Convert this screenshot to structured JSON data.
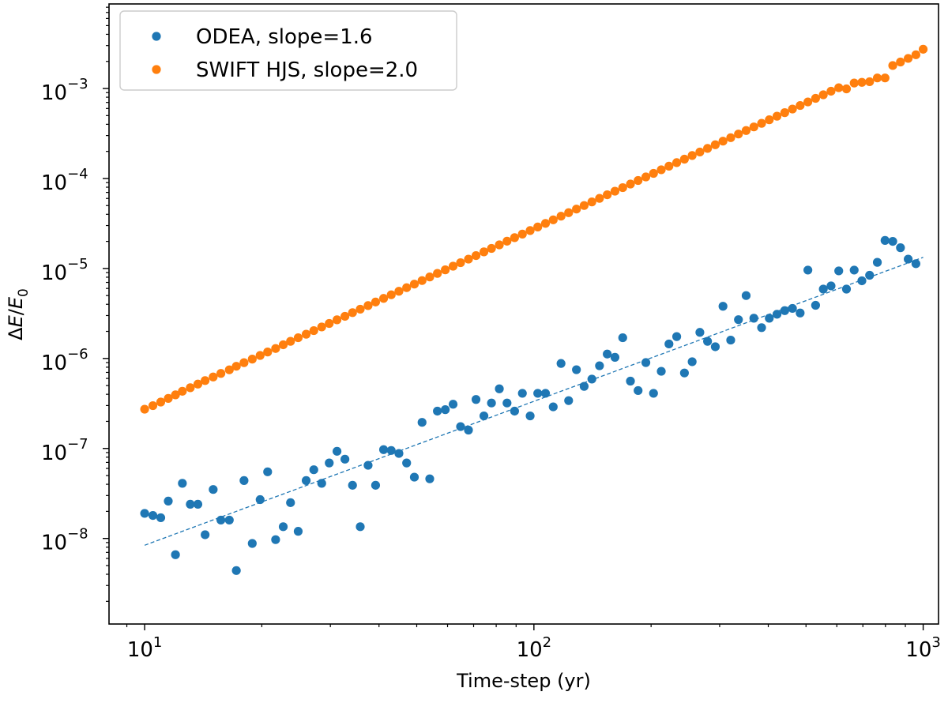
{
  "chart_data": {
    "type": "scatter",
    "xscale": "log",
    "yscale": "log",
    "xlim": [
      8.1,
      1095
    ],
    "ylim": [
      1.12e-09,
      0.0087
    ],
    "xlabel": "Time-step (yr)",
    "ylabel": "ΔE/E0",
    "grid": false,
    "legend_position": "top-left",
    "x_ticks": [
      {
        "value": 10,
        "base": "10",
        "exp": "1"
      },
      {
        "value": 100,
        "base": "10",
        "exp": "2"
      },
      {
        "value": 1000,
        "base": "10",
        "exp": "3"
      }
    ],
    "y_ticks": [
      {
        "value": 1e-08,
        "base": "10",
        "exp": "−8"
      },
      {
        "value": 1e-07,
        "base": "10",
        "exp": "−7"
      },
      {
        "value": 1e-06,
        "base": "10",
        "exp": "−6"
      },
      {
        "value": 1e-05,
        "base": "10",
        "exp": "−5"
      },
      {
        "value": 0.0001,
        "base": "10",
        "exp": "−4"
      },
      {
        "value": 0.001,
        "base": "10",
        "exp": "−3"
      }
    ],
    "series": [
      {
        "name": "ODEA, slope=1.6",
        "color": "#1f77b4",
        "points": [
          [
            10.0,
            1.9e-08
          ],
          [
            10.5,
            1.8e-08
          ],
          [
            11.0,
            1.7e-08
          ],
          [
            11.5,
            2.6e-08
          ],
          [
            12.0,
            6.6e-09
          ],
          [
            12.5,
            4.1e-08
          ],
          [
            13.1,
            2.4e-08
          ],
          [
            13.7,
            2.4e-08
          ],
          [
            14.3,
            1.1e-08
          ],
          [
            15.0,
            3.5e-08
          ],
          [
            15.7,
            1.6e-08
          ],
          [
            16.5,
            1.6e-08
          ],
          [
            17.2,
            4.4e-09
          ],
          [
            18.0,
            4.4e-08
          ],
          [
            18.9,
            8.8e-09
          ],
          [
            19.8,
            2.7e-08
          ],
          [
            20.7,
            5.5e-08
          ],
          [
            21.7,
            9.7e-09
          ],
          [
            22.7,
            1.35e-08
          ],
          [
            23.7,
            2.5e-08
          ],
          [
            24.8,
            1.2e-08
          ],
          [
            26.0,
            4.4e-08
          ],
          [
            27.2,
            5.8e-08
          ],
          [
            28.5,
            4.1e-08
          ],
          [
            29.8,
            6.9e-08
          ],
          [
            31.2,
            9.3e-08
          ],
          [
            32.7,
            7.6e-08
          ],
          [
            34.2,
            3.9e-08
          ],
          [
            35.8,
            1.35e-08
          ],
          [
            37.5,
            6.5e-08
          ],
          [
            39.2,
            3.9e-08
          ],
          [
            41.1,
            9.7e-08
          ],
          [
            43.0,
            9.5e-08
          ],
          [
            45.0,
            8.8e-08
          ],
          [
            47.1,
            6.9e-08
          ],
          [
            49.3,
            4.8e-08
          ],
          [
            51.6,
            1.95e-07
          ],
          [
            54.0,
            4.6e-08
          ],
          [
            56.5,
            2.6e-07
          ],
          [
            59.2,
            2.7e-07
          ],
          [
            62.0,
            3.1e-07
          ],
          [
            64.8,
            1.75e-07
          ],
          [
            67.9,
            1.6e-07
          ],
          [
            71.0,
            3.5e-07
          ],
          [
            74.4,
            2.3e-07
          ],
          [
            77.8,
            3.2e-07
          ],
          [
            81.5,
            4.6e-07
          ],
          [
            85.3,
            3.2e-07
          ],
          [
            89.2,
            2.6e-07
          ],
          [
            93.4,
            4.1e-07
          ],
          [
            97.8,
            2.3e-07
          ],
          [
            102.3,
            4.1e-07
          ],
          [
            107.1,
            4.1e-07
          ],
          [
            112.1,
            2.9e-07
          ],
          [
            117.4,
            8.8e-07
          ],
          [
            122.8,
            3.4e-07
          ],
          [
            128.6,
            7.5e-07
          ],
          [
            134.6,
            4.9e-07
          ],
          [
            140.9,
            5.9e-07
          ],
          [
            147.4,
            8.3e-07
          ],
          [
            154.3,
            1.12e-06
          ],
          [
            161.5,
            1.03e-06
          ],
          [
            169.1,
            1.7e-06
          ],
          [
            177.0,
            5.6e-07
          ],
          [
            185.2,
            4.4e-07
          ],
          [
            193.9,
            9e-07
          ],
          [
            202.9,
            4.1e-07
          ],
          [
            212.4,
            7.2e-07
          ],
          [
            222.3,
            1.45e-06
          ],
          [
            232.7,
            1.75e-06
          ],
          [
            243.6,
            6.9e-07
          ],
          [
            255.0,
            9.2e-07
          ],
          [
            266.9,
            1.95e-06
          ],
          [
            279.3,
            1.55e-06
          ],
          [
            292.4,
            1.35e-06
          ],
          [
            306.0,
            3.8e-06
          ],
          [
            320.3,
            1.6e-06
          ],
          [
            335.3,
            2.7e-06
          ],
          [
            350.9,
            5e-06
          ],
          [
            367.3,
            2.8e-06
          ],
          [
            384.5,
            2.2e-06
          ],
          [
            402.4,
            2.8e-06
          ],
          [
            421.2,
            3.1e-06
          ],
          [
            440.9,
            3.4e-06
          ],
          [
            461.5,
            3.6e-06
          ],
          [
            483.0,
            3.2e-06
          ],
          [
            505.6,
            9.6e-06
          ],
          [
            529.2,
            3.9e-06
          ],
          [
            553.9,
            5.9e-06
          ],
          [
            579.8,
            6.4e-06
          ],
          [
            606.9,
            9.4e-06
          ],
          [
            635.2,
            5.9e-06
          ],
          [
            664.9,
            9.6e-06
          ],
          [
            695.9,
            7.3e-06
          ],
          [
            728.4,
            8.4e-06
          ],
          [
            762.5,
            1.17e-05
          ],
          [
            798.1,
            2.05e-05
          ],
          [
            835.3,
            2e-05
          ],
          [
            874.3,
            1.7e-05
          ],
          [
            915.2,
            1.27e-05
          ],
          [
            957.9,
            1.13e-05
          ]
        ],
        "fit": {
          "slope": 1.6,
          "x": [
            10,
            1000
          ],
          "y": [
            8.4e-09,
            1.33e-05
          ]
        }
      },
      {
        "name": "SWIFT HJS, slope=2.0",
        "color": "#ff7f0e",
        "points": [
          [
            10.0,
            2.73e-07
          ],
          [
            10.5,
            2.99e-07
          ],
          [
            11.0,
            3.28e-07
          ],
          [
            11.5,
            3.6e-07
          ],
          [
            12.0,
            3.94e-07
          ],
          [
            12.5,
            4.32e-07
          ],
          [
            13.1,
            4.73e-07
          ],
          [
            13.7,
            5.19e-07
          ],
          [
            14.3,
            5.68e-07
          ],
          [
            15.0,
            6.23e-07
          ],
          [
            15.7,
            6.82e-07
          ],
          [
            16.5,
            7.48e-07
          ],
          [
            17.2,
            8.19e-07
          ],
          [
            18.0,
            8.98e-07
          ],
          [
            18.9,
            9.84e-07
          ],
          [
            19.8,
            1.08e-06
          ],
          [
            20.7,
            1.18e-06
          ],
          [
            21.7,
            1.29e-06
          ],
          [
            22.7,
            1.42e-06
          ],
          [
            23.7,
            1.55e-06
          ],
          [
            24.8,
            1.7e-06
          ],
          [
            26.0,
            1.86e-06
          ],
          [
            27.2,
            2.04e-06
          ],
          [
            28.5,
            2.24e-06
          ],
          [
            29.8,
            2.45e-06
          ],
          [
            31.2,
            2.69e-06
          ],
          [
            32.7,
            2.94e-06
          ],
          [
            34.2,
            3.23e-06
          ],
          [
            35.8,
            3.53e-06
          ],
          [
            37.5,
            3.87e-06
          ],
          [
            39.2,
            4.24e-06
          ],
          [
            41.1,
            4.65e-06
          ],
          [
            43.0,
            5.1e-06
          ],
          [
            45.0,
            5.58e-06
          ],
          [
            47.1,
            6.12e-06
          ],
          [
            49.3,
            6.7e-06
          ],
          [
            51.6,
            7.34e-06
          ],
          [
            54.0,
            8.05e-06
          ],
          [
            56.5,
            8.82e-06
          ],
          [
            59.2,
            9.66e-06
          ],
          [
            62.0,
            1.06e-05
          ],
          [
            64.8,
            1.16e-05
          ],
          [
            67.9,
            1.27e-05
          ],
          [
            71.0,
            1.39e-05
          ],
          [
            74.4,
            1.53e-05
          ],
          [
            77.8,
            1.67e-05
          ],
          [
            81.5,
            1.83e-05
          ],
          [
            85.3,
            2.01e-05
          ],
          [
            89.2,
            2.2e-05
          ],
          [
            93.4,
            2.41e-05
          ],
          [
            97.8,
            2.64e-05
          ],
          [
            102.3,
            2.89e-05
          ],
          [
            107.1,
            3.17e-05
          ],
          [
            112.1,
            3.47e-05
          ],
          [
            117.4,
            3.81e-05
          ],
          [
            122.8,
            4.17e-05
          ],
          [
            128.6,
            4.57e-05
          ],
          [
            134.6,
            5.01e-05
          ],
          [
            140.9,
            5.49e-05
          ],
          [
            147.4,
            6.01e-05
          ],
          [
            154.3,
            6.59e-05
          ],
          [
            161.5,
            7.22e-05
          ],
          [
            169.1,
            7.91e-05
          ],
          [
            177.0,
            8.67e-05
          ],
          [
            185.2,
            9.5e-05
          ],
          [
            193.9,
            0.000104
          ],
          [
            202.9,
            0.000114
          ],
          [
            212.4,
            0.000125
          ],
          [
            222.3,
            0.000137
          ],
          [
            232.7,
            0.00015
          ],
          [
            243.6,
            0.000164
          ],
          [
            255.0,
            0.00018
          ],
          [
            266.9,
            0.000197
          ],
          [
            279.3,
            0.000216
          ],
          [
            292.4,
            0.000237
          ],
          [
            306.0,
            0.00026
          ],
          [
            320.3,
            0.000284
          ],
          [
            335.3,
            0.000312
          ],
          [
            350.9,
            0.000341
          ],
          [
            367.3,
            0.000374
          ],
          [
            384.5,
            0.00041
          ],
          [
            402.4,
            0.000449
          ],
          [
            421.2,
            0.000492
          ],
          [
            440.9,
            0.000539
          ],
          [
            461.5,
            0.000591
          ],
          [
            483.0,
            0.000647
          ],
          [
            505.6,
            0.000709
          ],
          [
            529.2,
            0.000777
          ],
          [
            553.9,
            0.000851
          ],
          [
            579.8,
            0.000933
          ],
          [
            606.9,
            0.00102
          ],
          [
            635.2,
            0.00099
          ],
          [
            664.9,
            0.00115
          ],
          [
            695.9,
            0.00117
          ],
          [
            728.4,
            0.00119
          ],
          [
            762.5,
            0.00131
          ],
          [
            798.1,
            0.00131
          ],
          [
            835.3,
            0.0018
          ],
          [
            874.3,
            0.00197
          ],
          [
            915.2,
            0.00216
          ],
          [
            957.9,
            0.00237
          ],
          [
            1000.0,
            0.00273
          ]
        ]
      }
    ]
  }
}
